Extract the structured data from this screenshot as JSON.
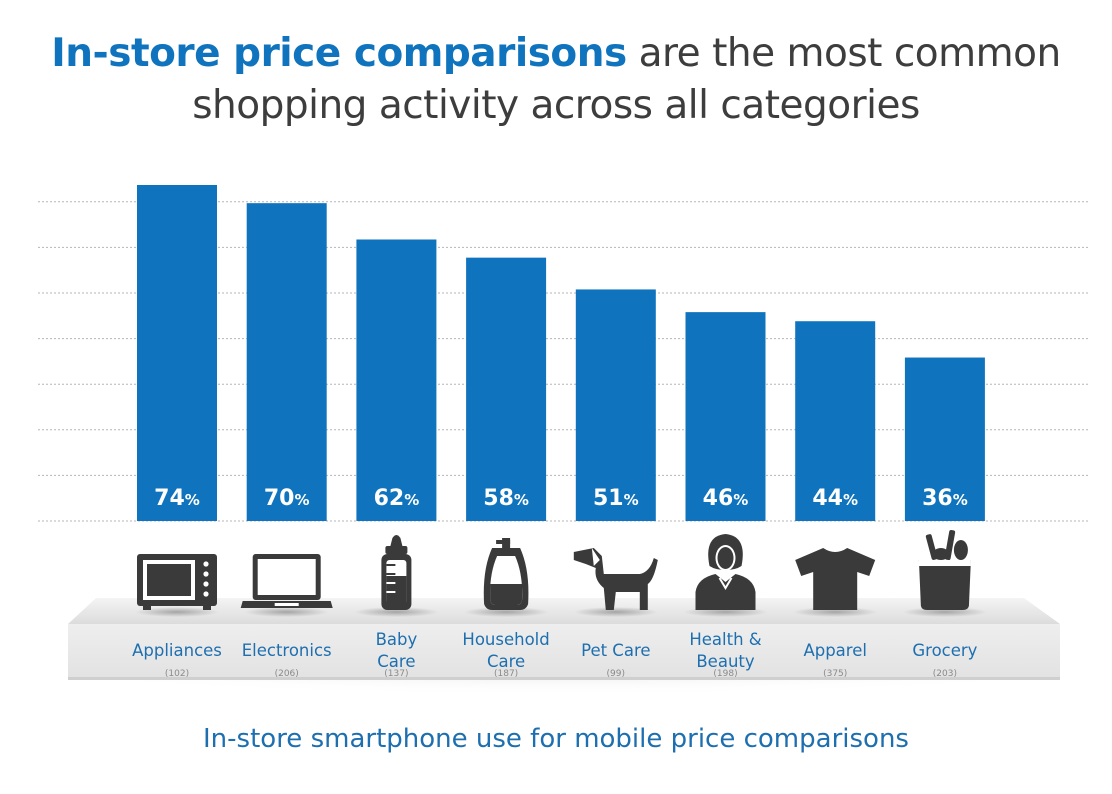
{
  "title": {
    "highlight": "In-store price comparisons",
    "rest_line1": " are the most common",
    "line2": "shopping activity across all categories"
  },
  "footer": "In-store smartphone use for mobile price comparisons",
  "colors": {
    "bar": "#0f74bd",
    "title_highlight": "#0f74bd",
    "icon": "#3a3a3a",
    "label": "#1d6fb0"
  },
  "chart_data": {
    "type": "bar",
    "title": "In-store price comparisons are the most common shopping activity across all categories",
    "categories": [
      "Appliances",
      "Electronics",
      "Baby Care",
      "Household Care",
      "Pet Care",
      "Health & Beauty",
      "Apparel",
      "Grocery"
    ],
    "label_lines": [
      [
        "Appliances"
      ],
      [
        "Electronics"
      ],
      [
        "Baby",
        "Care"
      ],
      [
        "Household",
        "Care"
      ],
      [
        "Pet Care"
      ],
      [
        "Health &",
        "Beauty"
      ],
      [
        "Apparel"
      ],
      [
        "Grocery"
      ]
    ],
    "sample_sizes": [
      "(102)",
      "(206)",
      "(137)",
      "(187)",
      "(99)",
      "(198)",
      "(375)",
      "(203)"
    ],
    "values": [
      74,
      70,
      62,
      58,
      51,
      46,
      44,
      36
    ],
    "value_suffix": "%",
    "icons": [
      "microwave-icon",
      "laptop-icon",
      "baby-bottle-icon",
      "detergent-bottle-icon",
      "dog-icon",
      "woman-icon",
      "tshirt-icon",
      "grocery-bag-icon"
    ],
    "ylim": [
      0,
      74
    ],
    "grid": true,
    "xlabel": "",
    "ylabel": ""
  }
}
